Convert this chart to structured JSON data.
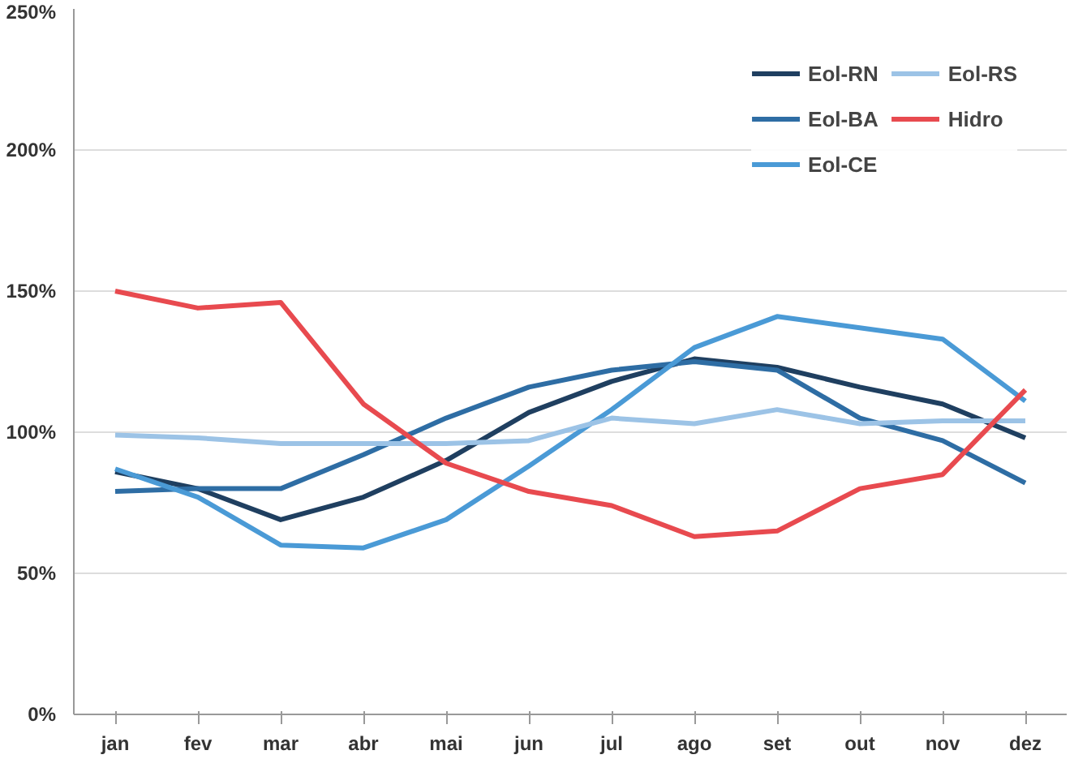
{
  "chart_data": {
    "type": "line",
    "categories": [
      "jan",
      "fev",
      "mar",
      "abr",
      "mai",
      "jun",
      "jul",
      "ago",
      "set",
      "out",
      "nov",
      "dez"
    ],
    "ylim": [
      0,
      250
    ],
    "yticks": [
      {
        "value": 0,
        "label": "0%"
      },
      {
        "value": 50,
        "label": "50%"
      },
      {
        "value": 100,
        "label": "100%"
      },
      {
        "value": 150,
        "label": "150%"
      },
      {
        "value": 200,
        "label": "200%"
      },
      {
        "value": 250,
        "label": "250%"
      }
    ],
    "grid": "y",
    "legend": "top right",
    "marker": "none",
    "line_style": "solid",
    "series": [
      {
        "name": "Eol-RN",
        "color": "#1f3f60",
        "values": [
          86,
          80,
          69,
          77,
          90,
          107,
          118,
          126,
          123,
          116,
          110,
          98
        ]
      },
      {
        "name": "Eol-BA",
        "color": "#2e6da4",
        "values": [
          79,
          80,
          80,
          92,
          105,
          116,
          122,
          125,
          122,
          105,
          97,
          82
        ]
      },
      {
        "name": "Eol-CE",
        "color": "#4a9ad6",
        "values": [
          87,
          77,
          60,
          59,
          69,
          88,
          108,
          130,
          141,
          137,
          133,
          111
        ]
      },
      {
        "name": "Eol-RS",
        "color": "#9cc3e6",
        "values": [
          99,
          98,
          96,
          96,
          96,
          97,
          105,
          103,
          108,
          103,
          104,
          104
        ]
      },
      {
        "name": "Hidro",
        "color": "#e84a4f",
        "values": [
          150,
          144,
          146,
          110,
          89,
          79,
          74,
          63,
          65,
          80,
          85,
          115
        ]
      }
    ]
  }
}
